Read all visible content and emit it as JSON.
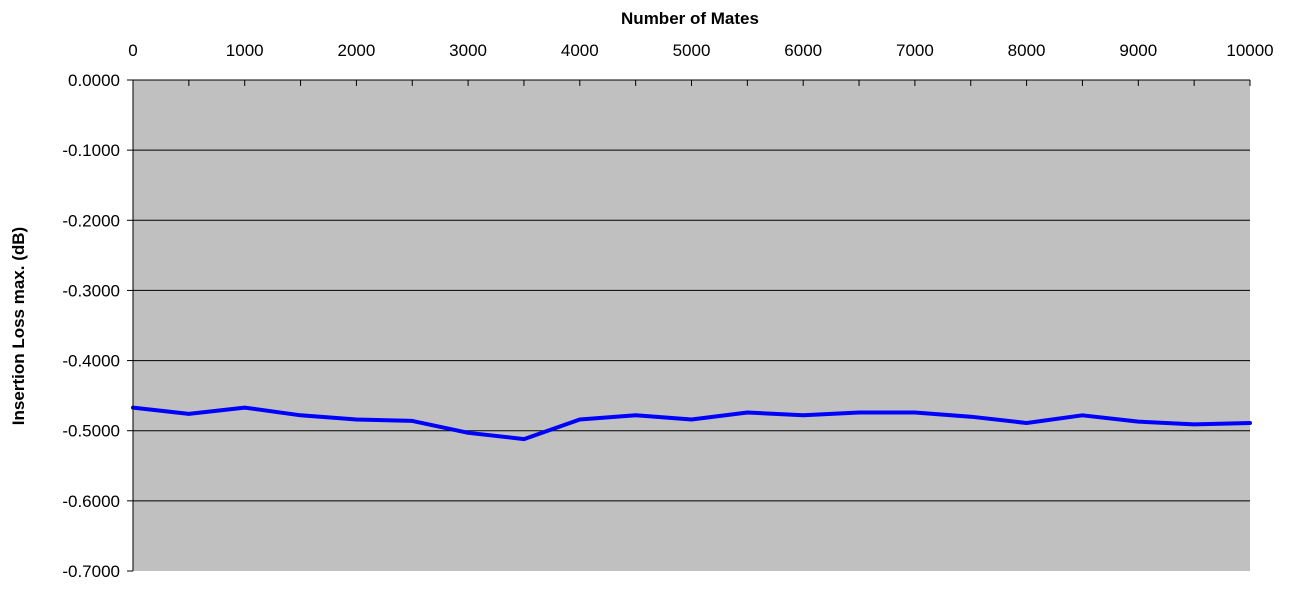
{
  "chart_data": {
    "type": "line",
    "title": "",
    "xlabel": "Number of Mates",
    "ylabel": "Insertion Loss max. (dB)",
    "xlim": [
      0,
      10000
    ],
    "ylim": [
      -0.7,
      0
    ],
    "x_tick_step": 500,
    "x_tick_labels": [
      "0",
      "1000",
      "2000",
      "3000",
      "4000",
      "5000",
      "6000",
      "7000",
      "8000",
      "9000",
      "10000"
    ],
    "y_tick_labels": [
      "0.0000",
      "-0.1000",
      "-0.2000",
      "-0.3000",
      "-0.4000",
      "-0.5000",
      "-0.6000",
      "-0.7000"
    ],
    "x_axis_position": "top",
    "grid": "horizontal",
    "legend": "none",
    "plot_background": "#c0c0c0",
    "gridline_color": "#000000",
    "series": [
      {
        "color": "#0000ff",
        "x": [
          0,
          500,
          1000,
          1500,
          2000,
          2500,
          3000,
          3500,
          4000,
          4500,
          5000,
          5500,
          6000,
          6500,
          7000,
          7500,
          8000,
          8500,
          9000,
          9500,
          10000
        ],
        "y": [
          -0.467,
          -0.476,
          -0.467,
          -0.478,
          -0.484,
          -0.486,
          -0.503,
          -0.512,
          -0.484,
          -0.478,
          -0.484,
          -0.474,
          -0.478,
          -0.474,
          -0.474,
          -0.48,
          -0.489,
          -0.478,
          -0.487,
          -0.491,
          -0.489
        ]
      }
    ]
  }
}
